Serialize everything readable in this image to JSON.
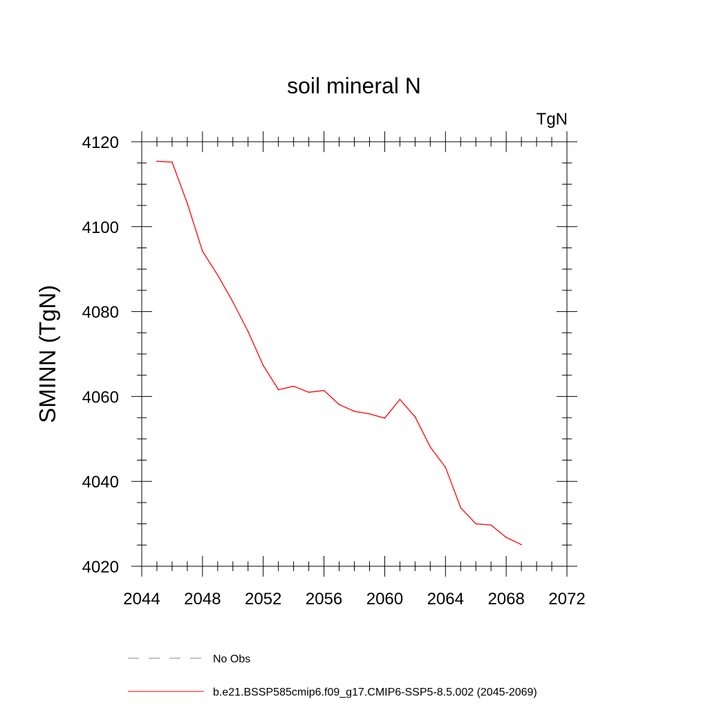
{
  "chart_data": {
    "type": "line",
    "title": "soil mineral N",
    "units": "TgN",
    "xlabel": "",
    "ylabel": "SMINN  (TgN)",
    "xlim": [
      2044,
      2072
    ],
    "ylim": [
      4020,
      4120
    ],
    "x_ticks": [
      "2044",
      "2048",
      "2052",
      "2056",
      "2060",
      "2064",
      "2068",
      "2072"
    ],
    "y_ticks": [
      "4020",
      "4040",
      "4060",
      "4080",
      "4100",
      "4120"
    ],
    "grid": false,
    "legend_position": "bottom",
    "series": [
      {
        "name": "No Obs",
        "color": "#7f7fbf",
        "dash": "dashed",
        "x": [],
        "values": []
      },
      {
        "name": "b.e21.BSSP585cmip6.f09_g17.CMIP6-SSP5-8.5.002 (2045-2069)",
        "color": "#ff0000",
        "dash": "solid",
        "x": [
          2045,
          2046,
          2047,
          2048,
          2049,
          2050,
          2051,
          2052,
          2053,
          2054,
          2055,
          2056,
          2057,
          2058,
          2059,
          2060,
          2061,
          2062,
          2063,
          2064,
          2065,
          2066,
          2067,
          2068,
          2069
        ],
        "values": [
          4115.4,
          4115.2,
          4105.5,
          4094.2,
          4088.6,
          4082.3,
          4075.3,
          4067.3,
          4061.6,
          4062.4,
          4061.0,
          4061.4,
          4058.1,
          4056.5,
          4055.9,
          4054.9,
          4059.3,
          4055.2,
          4048.1,
          4043.3,
          4033.8,
          4030.0,
          4029.7,
          4026.8,
          4025.1
        ]
      }
    ]
  }
}
